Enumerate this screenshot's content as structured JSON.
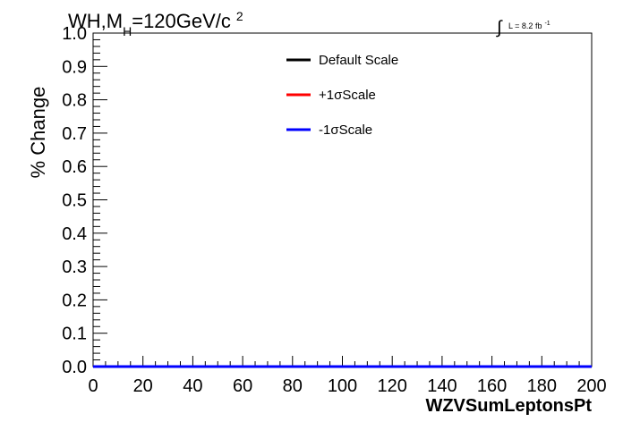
{
  "title": {
    "main": "WH,M",
    "sub": "H",
    "rest": "=120GeV/c",
    "sup": "2"
  },
  "lumi": {
    "integral": "∫",
    "text": "L = 8.2 fb",
    "sup": "-1"
  },
  "chart_data": {
    "type": "line",
    "xlabel": "WZVSumLeptonsPt",
    "ylabel": "% Change",
    "xlim": [
      0,
      200
    ],
    "ylim": [
      0,
      1.0
    ],
    "x_ticks": [
      "0",
      "20",
      "40",
      "60",
      "80",
      "100",
      "120",
      "140",
      "160",
      "180",
      "200"
    ],
    "y_ticks": [
      "0.0",
      "0.1",
      "0.2",
      "0.3",
      "0.4",
      "0.5",
      "0.6",
      "0.7",
      "0.8",
      "0.9",
      "1.0"
    ],
    "grid": false,
    "legend_position": "top-center",
    "series": [
      {
        "name": "Default Scale",
        "color": "#000000",
        "x": [
          0,
          200
        ],
        "y": [
          0,
          0
        ]
      },
      {
        "name": "+1σScale",
        "color": "#ff0000",
        "x": [
          0,
          200
        ],
        "y": [
          0,
          0
        ]
      },
      {
        "name": "-1σScale",
        "color": "#0000ff",
        "x": [
          0,
          200
        ],
        "y": [
          0,
          0
        ]
      }
    ]
  }
}
